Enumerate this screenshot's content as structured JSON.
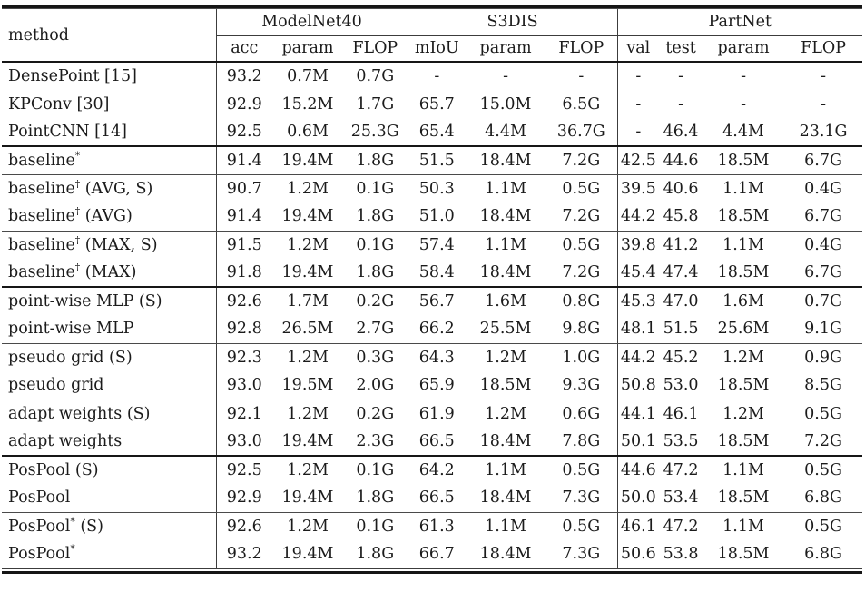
{
  "colors": {
    "background": "#ffffff",
    "text": "#1b1b1b",
    "rule_thick": "#161616",
    "rule_thin": "#4a4a4a"
  },
  "table": {
    "method_header": "method",
    "col_groups": [
      {
        "label": "ModelNet40",
        "cols": [
          "acc",
          "param",
          "FLOP"
        ]
      },
      {
        "label": "S3DIS",
        "cols": [
          "mIoU",
          "param",
          "FLOP"
        ]
      },
      {
        "label": "PartNet",
        "cols": [
          "val",
          "test",
          "param",
          "FLOP"
        ]
      }
    ],
    "rows": [
      {
        "method": "DensePoint [15]",
        "cells": [
          "93.2",
          "0.7M",
          "0.7G",
          "-",
          "-",
          "-",
          "-",
          "-",
          "-",
          "-"
        ],
        "sep": ""
      },
      {
        "method": "KPConv [30]",
        "cells": [
          "92.9",
          "15.2M",
          "1.7G",
          "65.7",
          "15.0M",
          "6.5G",
          "-",
          "-",
          "-",
          "-"
        ],
        "sep": ""
      },
      {
        "method": "PointCNN [14]",
        "cells": [
          "92.5",
          "0.6M",
          "25.3G",
          "65.4",
          "4.4M",
          "36.7G",
          "-",
          "46.4",
          "4.4M",
          "23.1G"
        ],
        "sep": "thick"
      },
      {
        "method": "baseline*",
        "cells": [
          "91.4",
          "19.4M",
          "1.8G",
          "51.5",
          "18.4M",
          "7.2G",
          "42.5",
          "44.6",
          "18.5M",
          "6.7G"
        ],
        "sep": "thin"
      },
      {
        "method": "baseline† (AVG, S)",
        "cells": [
          "90.7",
          "1.2M",
          "0.1G",
          "50.3",
          "1.1M",
          "0.5G",
          "39.5",
          "40.6",
          "1.1M",
          "0.4G"
        ],
        "sep": ""
      },
      {
        "method": "baseline† (AVG)",
        "cells": [
          "91.4",
          "19.4M",
          "1.8G",
          "51.0",
          "18.4M",
          "7.2G",
          "44.2",
          "45.8",
          "18.5M",
          "6.7G"
        ],
        "sep": "thin"
      },
      {
        "method": "baseline† (MAX, S)",
        "cells": [
          "91.5",
          "1.2M",
          "0.1G",
          "57.4",
          "1.1M",
          "0.5G",
          "39.8",
          "41.2",
          "1.1M",
          "0.4G"
        ],
        "sep": ""
      },
      {
        "method": "baseline† (MAX)",
        "cells": [
          "91.8",
          "19.4M",
          "1.8G",
          "58.4",
          "18.4M",
          "7.2G",
          "45.4",
          "47.4",
          "18.5M",
          "6.7G"
        ],
        "sep": "thick"
      },
      {
        "method": "point-wise MLP (S)",
        "cells": [
          "92.6",
          "1.7M",
          "0.2G",
          "56.7",
          "1.6M",
          "0.8G",
          "45.3",
          "47.0",
          "1.6M",
          "0.7G"
        ],
        "sep": ""
      },
      {
        "method": "point-wise MLP",
        "cells": [
          "92.8",
          "26.5M",
          "2.7G",
          "66.2",
          "25.5M",
          "9.8G",
          "48.1",
          "51.5",
          "25.6M",
          "9.1G"
        ],
        "sep": "thin"
      },
      {
        "method": "pseudo grid (S)",
        "cells": [
          "92.3",
          "1.2M",
          "0.3G",
          "64.3",
          "1.2M",
          "1.0G",
          "44.2",
          "45.2",
          "1.2M",
          "0.9G"
        ],
        "sep": ""
      },
      {
        "method": "pseudo grid",
        "cells": [
          "93.0",
          "19.5M",
          "2.0G",
          "65.9",
          "18.5M",
          "9.3G",
          "50.8",
          "53.0",
          "18.5M",
          "8.5G"
        ],
        "sep": "thin"
      },
      {
        "method": "adapt weights (S)",
        "cells": [
          "92.1",
          "1.2M",
          "0.2G",
          "61.9",
          "1.2M",
          "0.6G",
          "44.1",
          "46.1",
          "1.2M",
          "0.5G"
        ],
        "sep": ""
      },
      {
        "method": "adapt weights",
        "cells": [
          "93.0",
          "19.4M",
          "2.3G",
          "66.5",
          "18.4M",
          "7.8G",
          "50.1",
          "53.5",
          "18.5M",
          "7.2G"
        ],
        "sep": "thick"
      },
      {
        "method": "PosPool (S)",
        "cells": [
          "92.5",
          "1.2M",
          "0.1G",
          "64.2",
          "1.1M",
          "0.5G",
          "44.6",
          "47.2",
          "1.1M",
          "0.5G"
        ],
        "sep": ""
      },
      {
        "method": "PosPool",
        "cells": [
          "92.9",
          "19.4M",
          "1.8G",
          "66.5",
          "18.4M",
          "7.3G",
          "50.0",
          "53.4",
          "18.5M",
          "6.8G"
        ],
        "sep": "thin"
      },
      {
        "method": "PosPool* (S)",
        "cells": [
          "92.6",
          "1.2M",
          "0.1G",
          "61.3",
          "1.1M",
          "0.5G",
          "46.1",
          "47.2",
          "1.1M",
          "0.5G"
        ],
        "sep": ""
      },
      {
        "method": "PosPool*",
        "cells": [
          "93.2",
          "19.4M",
          "1.8G",
          "66.7",
          "18.4M",
          "7.3G",
          "50.6",
          "53.8",
          "18.5M",
          "6.8G"
        ],
        "sep": ""
      }
    ]
  }
}
